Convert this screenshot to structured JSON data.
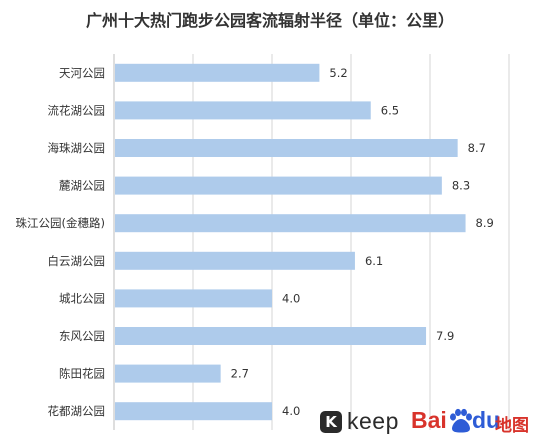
{
  "chart_data": {
    "type": "bar",
    "orientation": "horizontal",
    "title": "广州十大热门跑步公园客流辐射半径（单位：公里）",
    "categories": [
      "天河公园",
      "流花湖公园",
      "海珠湖公园",
      "麓湖公园",
      "珠江公园(金穗路)",
      "白云湖公园",
      "城北公园",
      "东风公园",
      "陈田花园",
      "花都湖公园"
    ],
    "values": [
      5.2,
      6.5,
      8.7,
      8.3,
      8.9,
      6.1,
      4.0,
      7.9,
      2.7,
      4.0
    ],
    "value_labels": [
      "5.2",
      "6.5",
      "8.7",
      "8.3",
      "8.9",
      "6.1",
      "4.0",
      "7.9",
      "2.7",
      "4.0"
    ],
    "xlim": [
      0,
      10
    ],
    "xlabel": "",
    "ylabel": "",
    "grid": true,
    "bar_color": "#aecbeb"
  },
  "logos": {
    "keep_mark": "K",
    "keep_word": "keep",
    "baidu_word": "Bai",
    "baidu_du": "du",
    "baidu_map": "地图"
  },
  "colors": {
    "keep": "#2b2b2b",
    "baidu_red": "#d8332b",
    "baidu_blue": "#2e5cd6"
  }
}
